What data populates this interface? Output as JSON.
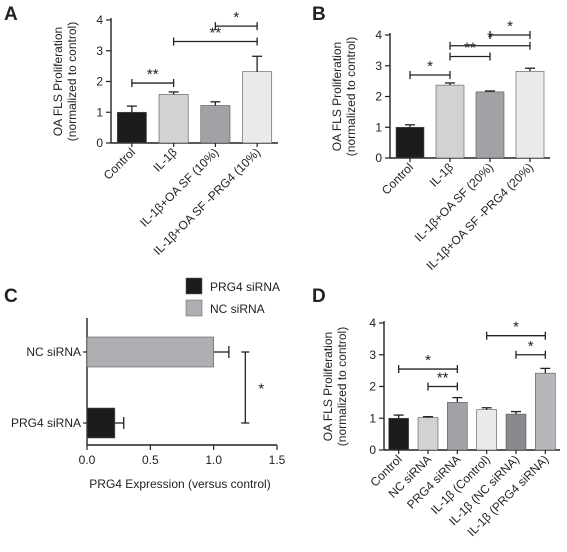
{
  "chart_data": [
    {
      "panel": "A",
      "type": "bar",
      "ylabel": "OA FLS Proliferation\n(normalized to control)",
      "ylim": [
        0,
        4
      ],
      "yticks": [
        "0",
        "1",
        "2",
        "3",
        "4"
      ],
      "categories": [
        "Control",
        "IL-1β",
        "IL-1β+OA SF (10%)",
        "IL-1β+OA SF -PRG4 (10%)"
      ],
      "values": [
        1.0,
        1.58,
        1.22,
        2.32
      ],
      "errors": [
        0.2,
        0.08,
        0.12,
        0.5
      ],
      "colors": [
        "#1c1c1c",
        "#d3d1d4",
        "#a3a0a6",
        "#ebe9ec"
      ],
      "significance": [
        {
          "from": 0,
          "to": 1,
          "label": "**",
          "y": 1.95
        },
        {
          "from": 1,
          "to": 3,
          "label": "**",
          "y": 3.3
        },
        {
          "from": 2,
          "to": 3,
          "label": "*",
          "y": 3.8
        }
      ]
    },
    {
      "panel": "B",
      "type": "bar",
      "ylabel": "OA FLS Proliferation\n(normalized to control)",
      "ylim": [
        0,
        4
      ],
      "yticks": [
        "0",
        "1",
        "2",
        "3",
        "4"
      ],
      "categories": [
        "Control",
        "IL-1β",
        "IL-1β+OA SF (20%)",
        "IL-1β+OA SF -PRG4 (20%)"
      ],
      "values": [
        1.0,
        2.37,
        2.15,
        2.82
      ],
      "errors": [
        0.08,
        0.07,
        0.03,
        0.1
      ],
      "colors": [
        "#1c1c1c",
        "#d3d1d4",
        "#a3a0a6",
        "#ebe9ec"
      ],
      "significance": [
        {
          "from": 0,
          "to": 1,
          "label": "*",
          "y": 2.7
        },
        {
          "from": 1,
          "to": 2,
          "label": "**",
          "y": 3.3
        },
        {
          "from": 1,
          "to": 3,
          "label": "*",
          "y": 3.65
        },
        {
          "from": 2,
          "to": 3,
          "label": "*",
          "y": 4.0
        }
      ]
    },
    {
      "panel": "C",
      "type": "bar",
      "orientation": "horizontal",
      "xlabel": "PRG4 Expression (versus control)",
      "xlim": [
        0,
        1.5
      ],
      "xticks": [
        "0.0",
        "0.5",
        "1.0",
        "1.5"
      ],
      "categories": [
        "NC siRNA",
        "PRG4 siRNA"
      ],
      "values": [
        1.0,
        0.22
      ],
      "errors": [
        0.12,
        0.07
      ],
      "colors": [
        "#b1aeb3",
        "#1c1c1c"
      ],
      "legend": [
        {
          "name": "PRG4 siRNA",
          "color": "#1c1c1c"
        },
        {
          "name": "NC siRNA",
          "color": "#b1aeb3"
        }
      ],
      "significance": [
        {
          "label": "*",
          "x": 1.25
        }
      ]
    },
    {
      "panel": "D",
      "type": "bar",
      "ylabel": "OA FLS Proliferation\n(normalized to control)",
      "ylim": [
        0,
        4
      ],
      "yticks": [
        "0",
        "1",
        "2",
        "3",
        "4"
      ],
      "categories": [
        "Control",
        "NC siRNA",
        "PRG4 siRNA",
        "IL-1β (Control)",
        "IL-1β (NC siRNA)",
        "IL-1β (PRG4 siRNA)"
      ],
      "values": [
        1.0,
        1.02,
        1.5,
        1.27,
        1.13,
        2.42
      ],
      "errors": [
        0.1,
        0.03,
        0.15,
        0.06,
        0.08,
        0.15
      ],
      "colors": [
        "#1c1c1c",
        "#d3d1d4",
        "#a3a0a6",
        "#ebe9ec",
        "#8b888e",
        "#b9b6bb"
      ],
      "significance": [
        {
          "from": 0,
          "to": 2,
          "label": "*",
          "y": 2.55
        },
        {
          "from": 1,
          "to": 2,
          "label": "**",
          "y": 2.0
        },
        {
          "from": 3,
          "to": 5,
          "label": "*",
          "y": 3.6
        },
        {
          "from": 4,
          "to": 5,
          "label": "*",
          "y": 3.0
        }
      ]
    }
  ]
}
